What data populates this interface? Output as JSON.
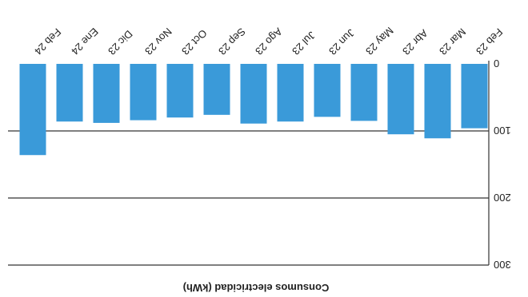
{
  "chart_data": {
    "type": "bar",
    "orientation": "vertical",
    "rotation_degrees": 180,
    "categories": [
      "Feb 23",
      "Mar 23",
      "Abr 23",
      "May 23",
      "Jun 23",
      "Jul 23",
      "Ago 23",
      "Sep 23",
      "Oct 23",
      "Nov 23",
      "Dic 23",
      "Ene 24",
      "Feb 24"
    ],
    "values": [
      96,
      111,
      105,
      85,
      79,
      86,
      89,
      76,
      80,
      84,
      88,
      86,
      136
    ],
    "ylabel": "Consumos electricidad (kWh)",
    "ylim": [
      0,
      300
    ],
    "yticks": [
      0,
      100,
      200,
      300
    ],
    "grid": true,
    "bar_color": "#3a9ad9"
  }
}
